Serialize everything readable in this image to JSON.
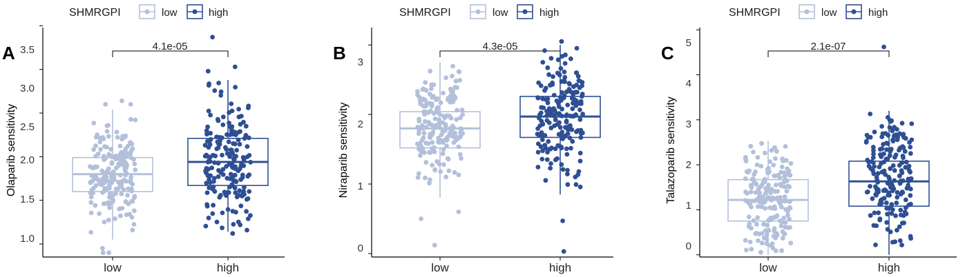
{
  "legend": {
    "title": "SHMRGPI",
    "groups": [
      {
        "label": "low",
        "color": "#b3c0da"
      },
      {
        "label": "high",
        "color": "#2e4f93"
      }
    ]
  },
  "chart_data": [
    {
      "type": "box",
      "panel": "A",
      "ylabel": "Olaparib sensitivity",
      "categories": [
        "low",
        "high"
      ],
      "ylim": [
        0.85,
        3.48
      ],
      "yticks": [
        "1.0",
        "1.5",
        "2.0",
        "2.5",
        "3.0",
        "3.5"
      ],
      "p_value": "4.1e-05",
      "boxes": [
        {
          "group": "low",
          "q1": 1.6,
          "median": 1.8,
          "q3": 1.99,
          "whisker_low": 1.05,
          "whisker_high": 2.54
        },
        {
          "group": "high",
          "q1": 1.67,
          "median": 1.94,
          "q3": 2.21,
          "whisker_low": 1.14,
          "whisker_high": 2.88
        }
      ],
      "outliers": [
        {
          "group": "low",
          "values": [
            0.9,
            0.9,
            0.95,
            2.6,
            2.64,
            2.6
          ]
        },
        {
          "group": "high",
          "values": [
            3.37,
            3.03,
            2.98,
            1.12
          ]
        }
      ]
    },
    {
      "type": "box",
      "panel": "B",
      "ylabel": "Niraparib sensitivity",
      "categories": [
        "low",
        "high"
      ],
      "ylim": [
        -0.05,
        3.25
      ],
      "yticks": [
        "0",
        "1",
        "2",
        "3"
      ],
      "p_value": "4.3e-05",
      "boxes": [
        {
          "group": "low",
          "q1": 1.52,
          "median": 1.8,
          "q3": 2.04,
          "whisker_low": 0.8,
          "whisker_high": 2.75
        },
        {
          "group": "high",
          "q1": 1.67,
          "median": 1.97,
          "q3": 2.26,
          "whisker_low": 0.85,
          "whisker_high": 3.0
        }
      ],
      "outliers": [
        {
          "group": "low",
          "values": [
            0.12,
            0.5,
            0.6
          ]
        },
        {
          "group": "high",
          "values": [
            0.03,
            0.47,
            3.05
          ]
        }
      ]
    },
    {
      "type": "box",
      "panel": "C",
      "ylabel": "Talazoparib sensitivity",
      "categories": [
        "low",
        "high"
      ],
      "ylim": [
        -0.05,
        5.05
      ],
      "yticks": [
        "0",
        "1",
        "2",
        "3",
        "4",
        "5"
      ],
      "p_value": "2.1e-07",
      "boxes": [
        {
          "group": "low",
          "q1": 0.75,
          "median": 1.22,
          "q3": 1.67,
          "whisker_low": 0.0,
          "whisker_high": 2.53
        },
        {
          "group": "high",
          "q1": 1.08,
          "median": 1.63,
          "q3": 2.08,
          "whisker_low": 0.0,
          "whisker_high": 3.2
        }
      ],
      "outliers": [
        {
          "group": "high",
          "values": [
            4.62
          ]
        }
      ]
    }
  ]
}
